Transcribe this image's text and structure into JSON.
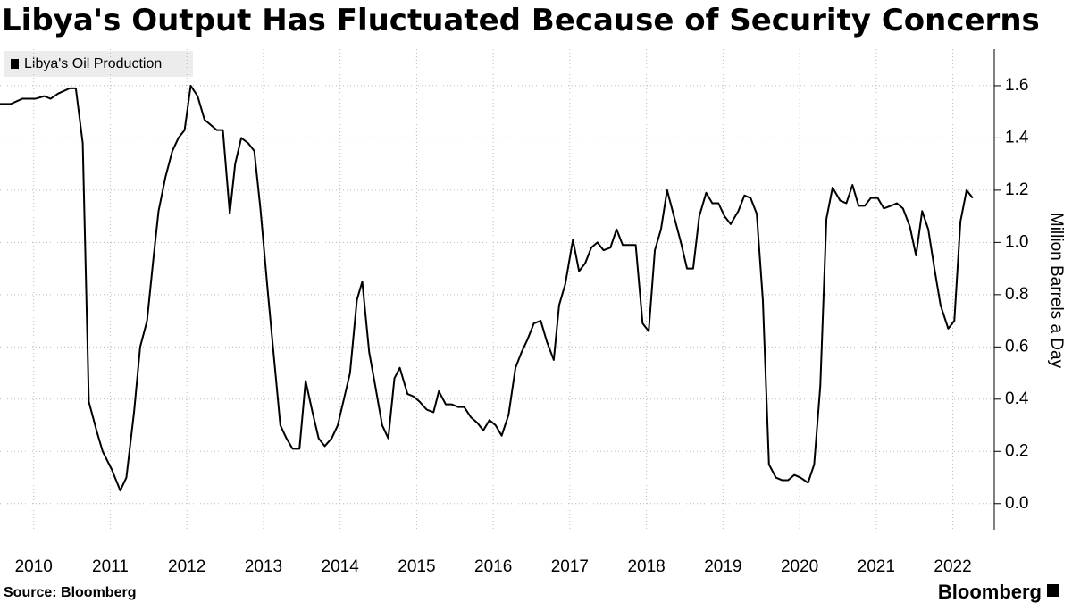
{
  "chart_data": {
    "type": "line",
    "title": "Libya's Output Has Fluctuated Because of Security Concerns",
    "y_label": "Million Barrels a Day",
    "source": "Source:  Bloomberg",
    "brand": "Bloomberg",
    "xlim": [
      2009.56,
      2022.39
    ],
    "xticks": [
      2010,
      2011,
      2012,
      2013,
      2014,
      2015,
      2016,
      2017,
      2018,
      2019,
      2020,
      2021,
      2022
    ],
    "ylim": [
      -0.1,
      1.74
    ],
    "yticks": [
      {
        "value": 0,
        "label": "0.0"
      },
      0.2,
      0.4,
      0.6,
      0.8,
      {
        "value": 1,
        "label": "1.0"
      },
      1.2,
      1.4,
      1.6
    ],
    "grid": true,
    "x": [
      2009.56,
      2009.7,
      2009.85,
      2010.02,
      2010.14,
      2010.22,
      2010.32,
      2010.47,
      2010.55,
      2010.64,
      2010.72,
      2010.82,
      2010.9,
      2011.02,
      2011.13,
      2011.21,
      2011.31,
      2011.39,
      2011.48,
      2011.56,
      2011.63,
      2011.72,
      2011.81,
      2011.89,
      2011.97,
      2012.05,
      2012.14,
      2012.23,
      2012.31,
      2012.39,
      2012.47,
      2012.56,
      2012.63,
      2012.71,
      2012.8,
      2012.88,
      2012.96,
      2013.06,
      2013.14,
      2013.22,
      2013.3,
      2013.38,
      2013.47,
      2013.55,
      2013.64,
      2013.72,
      2013.8,
      2013.89,
      2013.97,
      2014.05,
      2014.13,
      2014.22,
      2014.29,
      2014.38,
      2014.46,
      2014.55,
      2014.63,
      2014.71,
      2014.78,
      2014.88,
      2014.96,
      2015.04,
      2015.13,
      2015.22,
      2015.29,
      2015.38,
      2015.46,
      2015.54,
      2015.62,
      2015.71,
      2015.79,
      2015.87,
      2015.95,
      2016.03,
      2016.11,
      2016.2,
      2016.29,
      2016.37,
      2016.45,
      2016.53,
      2016.62,
      2016.7,
      2016.79,
      2016.86,
      2016.94,
      2017.04,
      2017.12,
      2017.2,
      2017.28,
      2017.36,
      2017.44,
      2017.53,
      2017.61,
      2017.69,
      2017.78,
      2017.86,
      2017.95,
      2018.03,
      2018.11,
      2018.19,
      2018.27,
      2018.36,
      2018.45,
      2018.53,
      2018.61,
      2018.69,
      2018.78,
      2018.86,
      2018.94,
      2019.02,
      2019.1,
      2019.2,
      2019.28,
      2019.36,
      2019.44,
      2019.52,
      2019.6,
      2019.69,
      2019.77,
      2019.85,
      2019.93,
      2020.01,
      2020.11,
      2020.19,
      2020.27,
      2020.35,
      2020.43,
      2020.53,
      2020.61,
      2020.69,
      2020.77,
      2020.85,
      2020.93,
      2021.02,
      2021.1,
      2021.19,
      2021.27,
      2021.35,
      2021.44,
      2021.52,
      2021.6,
      2021.68,
      2021.76,
      2021.84,
      2021.94,
      2022.02,
      2022.1,
      2022.18,
      2022.26
    ],
    "series": [
      {
        "name": "Libya's Oil Production",
        "color": "#000000",
        "values": [
          1.53,
          1.53,
          1.55,
          1.55,
          1.56,
          1.55,
          1.57,
          1.59,
          1.59,
          1.38,
          0.39,
          0.28,
          0.2,
          0.13,
          0.05,
          0.1,
          0.35,
          0.6,
          0.7,
          0.93,
          1.12,
          1.25,
          1.35,
          1.4,
          1.43,
          1.6,
          1.56,
          1.47,
          1.45,
          1.43,
          1.43,
          1.11,
          1.3,
          1.4,
          1.38,
          1.35,
          1.13,
          0.8,
          0.55,
          0.3,
          0.25,
          0.21,
          0.21,
          0.47,
          0.35,
          0.25,
          0.22,
          0.25,
          0.3,
          0.4,
          0.5,
          0.78,
          0.85,
          0.58,
          0.45,
          0.3,
          0.25,
          0.48,
          0.52,
          0.42,
          0.41,
          0.39,
          0.36,
          0.35,
          0.43,
          0.38,
          0.38,
          0.37,
          0.37,
          0.33,
          0.31,
          0.28,
          0.32,
          0.3,
          0.26,
          0.34,
          0.52,
          0.58,
          0.63,
          0.69,
          0.7,
          0.62,
          0.55,
          0.76,
          0.84,
          1.01,
          0.89,
          0.92,
          0.98,
          1.0,
          0.97,
          0.98,
          1.05,
          0.99,
          0.99,
          0.99,
          0.69,
          0.66,
          0.97,
          1.05,
          1.2,
          1.1,
          1.0,
          0.9,
          0.9,
          1.1,
          1.19,
          1.15,
          1.15,
          1.1,
          1.07,
          1.12,
          1.18,
          1.17,
          1.11,
          0.78,
          0.15,
          0.1,
          0.09,
          0.09,
          0.11,
          0.1,
          0.08,
          0.15,
          0.45,
          1.09,
          1.21,
          1.16,
          1.15,
          1.22,
          1.14,
          1.14,
          1.17,
          1.17,
          1.13,
          1.14,
          1.15,
          1.13,
          1.06,
          0.95,
          1.12,
          1.05,
          0.9,
          0.76,
          0.67,
          0.7,
          1.08,
          1.2,
          1.17
        ]
      }
    ]
  }
}
